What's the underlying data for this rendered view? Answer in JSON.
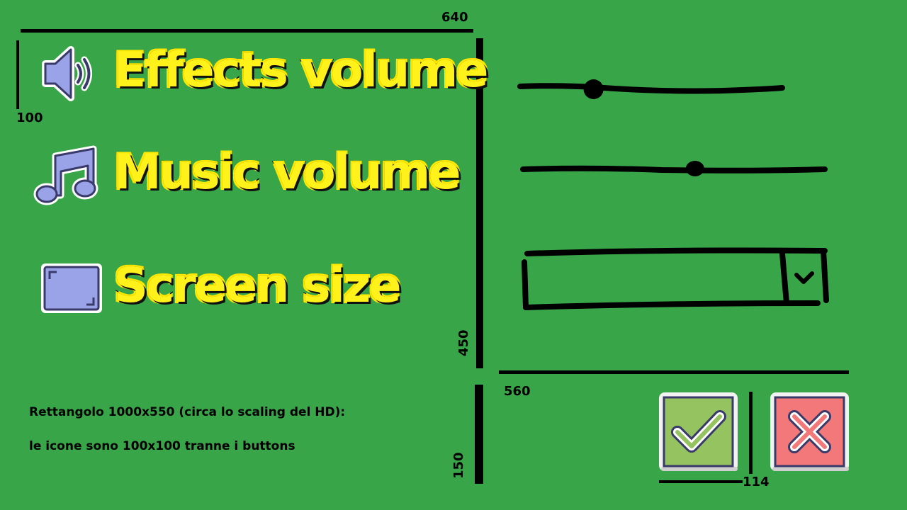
{
  "labels": {
    "effects": "Effects volume",
    "music": "Music volume",
    "screen": "Screen size"
  },
  "sliders": {
    "effects_value": 0.28,
    "music_value": 0.57
  },
  "dropdown": {
    "value": ""
  },
  "dimensions": {
    "top_width": "640",
    "row_height": "100",
    "panel_height": "450",
    "controls_width": "560",
    "footer_height": "150",
    "button_width": "114"
  },
  "notes": {
    "line1": "Rettangolo  1000x550 (circa lo scaling del HD):",
    "line2": "le icone sono 100x100 tranne i buttons"
  },
  "icons": {
    "effects": "speaker-icon",
    "music": "music-note-icon",
    "screen": "screen-frame-icon",
    "confirm": "checkmark-icon",
    "cancel": "cross-icon"
  },
  "colors": {
    "background": "#38a648",
    "label_fill": "#fff21a",
    "icon_fill": "#9aa3e8",
    "confirm_bg": "#95c35f",
    "cancel_bg": "#f2787a"
  }
}
